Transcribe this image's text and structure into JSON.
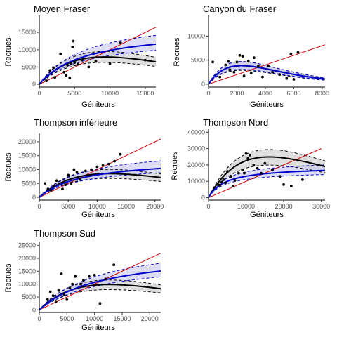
{
  "chart_data": [
    {
      "type": "scatter",
      "title": "Moyen Fraser",
      "xlabel": "Géniteurs",
      "ylabel": "Recrues",
      "xlim": [
        0,
        16500
      ],
      "ylim": [
        -800,
        19500
      ],
      "xticks": [
        0,
        5000,
        10000,
        15000
      ],
      "xtick_labels": [
        "0",
        "5000",
        "10000",
        "15000"
      ],
      "yticks": [
        0,
        5000,
        10000,
        15000
      ],
      "ytick_labels": [
        "0",
        "5000",
        "10000",
        "15000"
      ],
      "grid": false,
      "points": [
        [
          1000,
          1000
        ],
        [
          1500,
          4000
        ],
        [
          2000,
          4800
        ],
        [
          2200,
          2000
        ],
        [
          3000,
          8800
        ],
        [
          3500,
          3500
        ],
        [
          3800,
          2600
        ],
        [
          4000,
          5500
        ],
        [
          4300,
          1900
        ],
        [
          4500,
          6000
        ],
        [
          4700,
          10800
        ],
        [
          4800,
          12500
        ],
        [
          5000,
          6300
        ],
        [
          5500,
          5800
        ],
        [
          6000,
          7000
        ],
        [
          7000,
          5000
        ],
        [
          8000,
          6600
        ],
        [
          10000,
          6000
        ],
        [
          11500,
          12000
        ],
        [
          15000,
          7000
        ]
      ],
      "ricker": {
        "a": 2.3,
        "b": 0.000107,
        "band_low": 0.8,
        "band_high": 1.2
      },
      "beverton_holt": {
        "a": 2.5,
        "b": 0.000155,
        "band_low": 0.85,
        "band_high": 1.22
      },
      "replacement_max": 16500,
      "series_colors": {
        "ricker": "#000000",
        "beverton_holt": "#0000cd",
        "replacement": "#cc0000",
        "ricker_band": "#d9d9d9",
        "bh_band": "#c6c6f0"
      }
    },
    {
      "type": "scatter",
      "title": "Canyon du Fraser",
      "xlabel": "Géniteurs",
      "ylabel": "Recrues",
      "xlim": [
        0,
        8200
      ],
      "ylim": [
        -600,
        14000
      ],
      "xticks": [
        0,
        2000,
        4000,
        6000,
        8000
      ],
      "xtick_labels": [
        "0",
        "2000",
        "4000",
        "6000",
        "8000"
      ],
      "yticks": [
        0,
        5000,
        10000
      ],
      "ytick_labels": [
        "0",
        "5000",
        "10000"
      ],
      "grid": false,
      "points": [
        [
          300,
          4600
        ],
        [
          800,
          1500
        ],
        [
          1200,
          4000
        ],
        [
          1400,
          4700
        ],
        [
          1500,
          3000
        ],
        [
          1800,
          2500
        ],
        [
          2000,
          4600
        ],
        [
          2200,
          6000
        ],
        [
          2400,
          5800
        ],
        [
          2500,
          1700
        ],
        [
          2800,
          4800
        ],
        [
          3000,
          2300
        ],
        [
          3200,
          5500
        ],
        [
          3500,
          3800
        ],
        [
          3800,
          1500
        ],
        [
          4200,
          3800
        ],
        [
          4500,
          2500
        ],
        [
          5000,
          2000
        ],
        [
          5500,
          1200
        ],
        [
          5800,
          6300
        ],
        [
          6000,
          1000
        ],
        [
          6300,
          6600
        ]
      ],
      "ricker": {
        "a": 4.5,
        "b": 0.00043,
        "band_low": 0.75,
        "band_high": 1.22
      },
      "beverton_holt": {
        "a": 4.5,
        "b": 0.00043,
        "band_low": 0.8,
        "band_high": 1.22
      },
      "bh_is_ricker": true,
      "replacement_max": 8200,
      "series_colors": {
        "ricker": "#000000",
        "beverton_holt": "#0000cd",
        "replacement": "#cc0000",
        "ricker_band": "#d9d9d9",
        "bh_band": "#c6c6f0"
      }
    },
    {
      "type": "scatter",
      "title": "Thompson inférieure",
      "xlabel": "Géniteurs",
      "ylabel": "Recrues",
      "xlim": [
        0,
        21000
      ],
      "ylim": [
        -1000,
        22500
      ],
      "xticks": [
        0,
        5000,
        10000,
        15000,
        20000
      ],
      "xtick_labels": [
        "0",
        "5000",
        "10000",
        "15000",
        "20000"
      ],
      "yticks": [
        0,
        5000,
        10000,
        15000,
        20000
      ],
      "ytick_labels": [
        "0",
        "5000",
        "10000",
        "15000",
        "20000"
      ],
      "grid": false,
      "points": [
        [
          1000,
          5000
        ],
        [
          1500,
          3000
        ],
        [
          2000,
          2500
        ],
        [
          2500,
          4000
        ],
        [
          3000,
          6000
        ],
        [
          4000,
          3000
        ],
        [
          4500,
          4500
        ],
        [
          5000,
          8000
        ],
        [
          5500,
          5000
        ],
        [
          6000,
          10000
        ],
        [
          6500,
          9000
        ],
        [
          7000,
          6500
        ],
        [
          8000,
          9500
        ],
        [
          9000,
          10000
        ],
        [
          10000,
          11000
        ],
        [
          11000,
          11500
        ],
        [
          12000,
          12000
        ],
        [
          13000,
          13000
        ],
        [
          14000,
          15500
        ]
      ],
      "ricker": {
        "a": 1.9,
        "b": 8.2e-05,
        "band_low": 0.8,
        "band_high": 1.18
      },
      "beverton_holt": {
        "a": 1.9,
        "b": 0.000135,
        "band_low": 0.85,
        "band_high": 1.26
      },
      "replacement_max": 21000,
      "series_colors": {
        "ricker": "#000000",
        "beverton_holt": "#0000cd",
        "replacement": "#cc0000",
        "ricker_band": "#d9d9d9",
        "bh_band": "#c6c6f0"
      }
    },
    {
      "type": "scatter",
      "title": "Thompson Nord",
      "xlabel": "Géniteurs",
      "ylabel": "Recrues",
      "xlim": [
        0,
        31000
      ],
      "ylim": [
        -1500,
        41000
      ],
      "xticks": [
        0,
        10000,
        20000,
        30000
      ],
      "xtick_labels": [
        "0",
        "10000",
        "20000",
        "30000"
      ],
      "yticks": [
        0,
        10000,
        20000,
        30000,
        40000
      ],
      "ytick_labels": [
        "0",
        "10000",
        "20000",
        "30000",
        "40000"
      ],
      "grid": false,
      "points": [
        [
          2500,
          8000
        ],
        [
          3000,
          7500
        ],
        [
          3500,
          9500
        ],
        [
          4000,
          11000
        ],
        [
          4500,
          9000
        ],
        [
          5000,
          16000
        ],
        [
          6000,
          13000
        ],
        [
          6500,
          7000
        ],
        [
          7000,
          10500
        ],
        [
          8000,
          15000
        ],
        [
          9000,
          17000
        ],
        [
          9500,
          15000
        ],
        [
          10000,
          27000
        ],
        [
          10500,
          24000
        ],
        [
          11000,
          26000
        ],
        [
          12000,
          20000
        ],
        [
          13000,
          18000
        ],
        [
          14000,
          15000
        ],
        [
          15000,
          21000
        ],
        [
          17000,
          17000
        ],
        [
          19000,
          13000
        ],
        [
          20000,
          8000
        ],
        [
          22000,
          7000
        ],
        [
          25000,
          11000
        ]
      ],
      "ricker": {
        "a": 4.2,
        "b": 6.2e-05,
        "band_low": 0.8,
        "band_high": 1.18
      },
      "beverton_holt": {
        "a": 4.2,
        "b": 0.00022,
        "band_low": 0.85,
        "band_high": 1.2
      },
      "replacement_max": 30000,
      "series_colors": {
        "ricker": "#000000",
        "beverton_holt": "#0000cd",
        "replacement": "#cc0000",
        "ricker_band": "#d9d9d9",
        "bh_band": "#c6c6f0"
      }
    },
    {
      "type": "scatter",
      "title": "Thompson Sud",
      "xlabel": "Géniteurs",
      "ylabel": "Recrues",
      "xlim": [
        0,
        22000
      ],
      "ylim": [
        -1000,
        26000
      ],
      "xticks": [
        0,
        5000,
        10000,
        15000,
        20000
      ],
      "xtick_labels": [
        "0",
        "5000",
        "10000",
        "15000",
        "20000"
      ],
      "yticks": [
        0,
        5000,
        10000,
        15000,
        20000,
        25000
      ],
      "ytick_labels": [
        "0",
        "5000",
        "10000",
        "15000",
        "20000",
        "25000"
      ],
      "grid": false,
      "points": [
        [
          1500,
          4000
        ],
        [
          2000,
          7000
        ],
        [
          2500,
          5500
        ],
        [
          3000,
          3000
        ],
        [
          3500,
          7500
        ],
        [
          4000,
          14000
        ],
        [
          4500,
          6000
        ],
        [
          5000,
          4000
        ],
        [
          5500,
          8500
        ],
        [
          6000,
          10000
        ],
        [
          6500,
          13000
        ],
        [
          7500,
          10000
        ],
        [
          8000,
          11500
        ],
        [
          9000,
          13000
        ],
        [
          10000,
          13500
        ],
        [
          11000,
          2500
        ],
        [
          12000,
          12000
        ],
        [
          13500,
          17500
        ]
      ],
      "ricker": {
        "a": 2.1,
        "b": 7.85e-05,
        "band_low": 0.8,
        "band_high": 1.18
      },
      "beverton_holt": {
        "a": 2.0,
        "b": 8.7e-05,
        "band_low": 0.85,
        "band_high": 1.2
      },
      "replacement_max": 22000,
      "series_colors": {
        "ricker": "#000000",
        "beverton_holt": "#0000cd",
        "replacement": "#cc0000",
        "ricker_band": "#d9d9d9",
        "bh_band": "#c6c6f0"
      }
    }
  ]
}
